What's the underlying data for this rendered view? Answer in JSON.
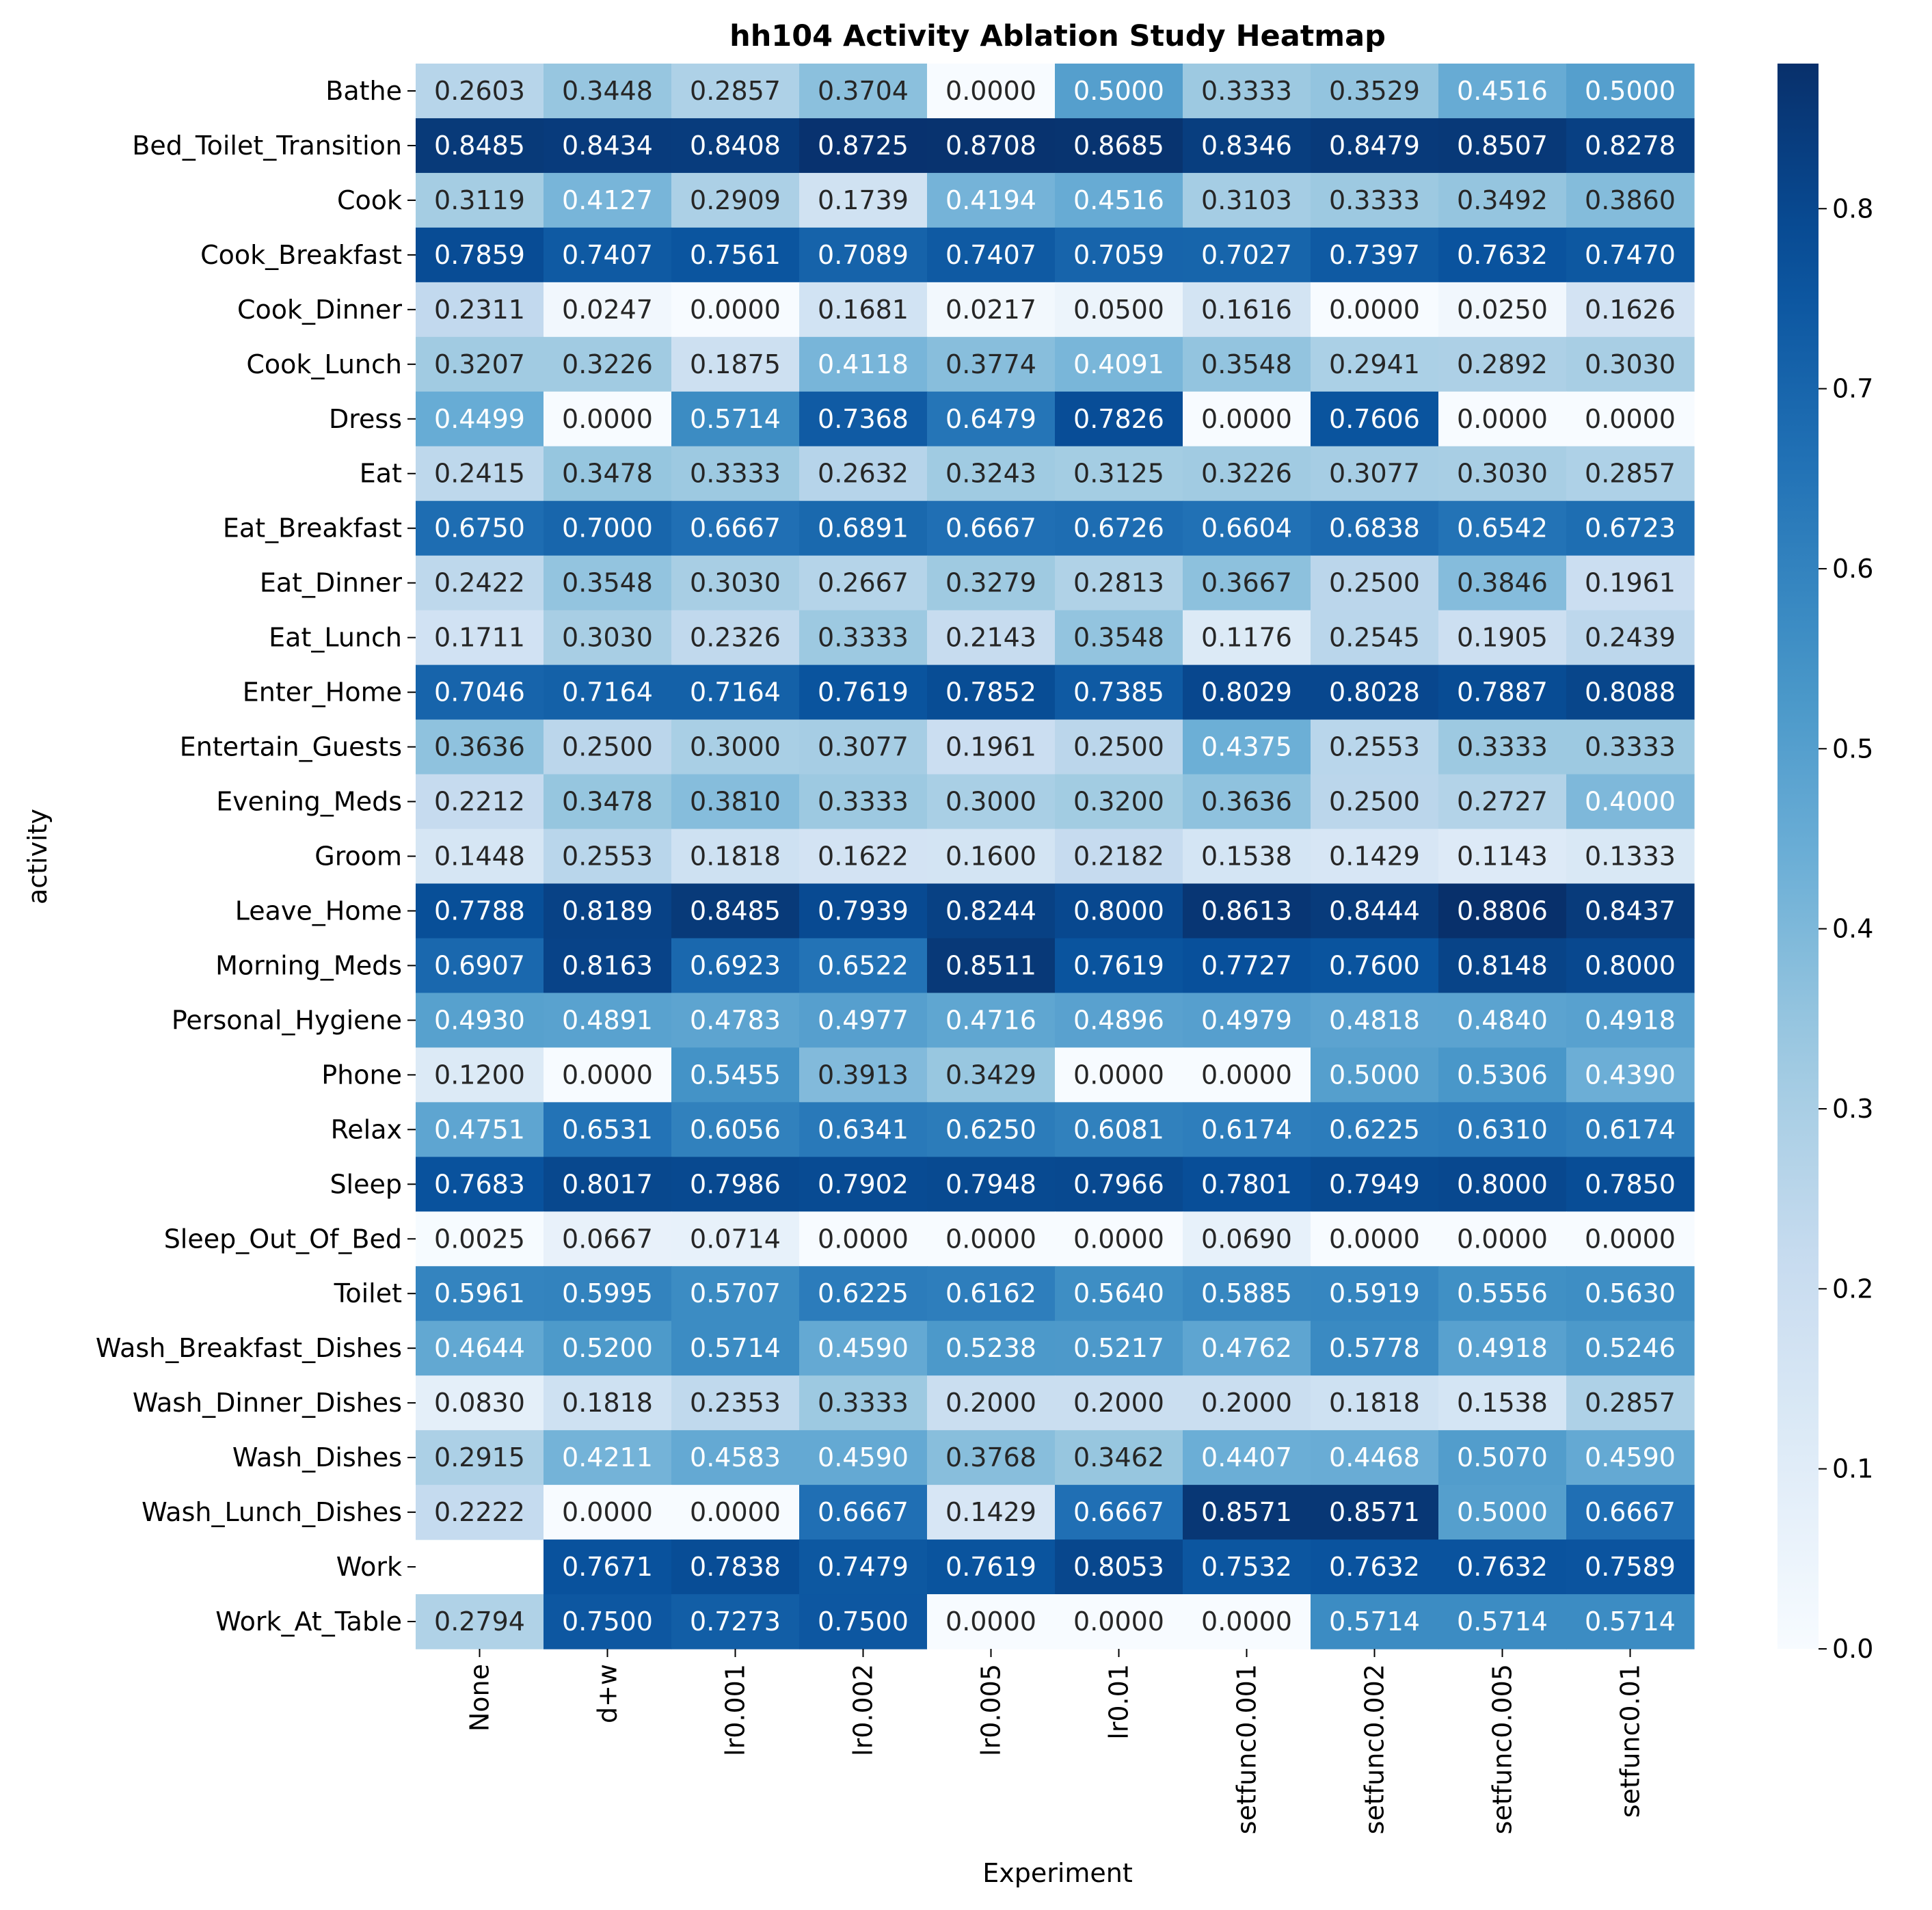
{
  "chart_data": {
    "type": "heatmap",
    "title": "hh104 Activity Ablation Study Heatmap",
    "xlabel": "Experiment",
    "ylabel": "activity",
    "colormap": "Blues",
    "vmin": 0.0,
    "vmax": 0.8806,
    "colorbar_ticks": [
      "0.0",
      "0.1",
      "0.2",
      "0.3",
      "0.4",
      "0.5",
      "0.6",
      "0.7",
      "0.8"
    ],
    "x_categories": [
      "None",
      "d+w",
      "lr0.001",
      "lr0.002",
      "lr0.005",
      "lr0.01",
      "setfunc0.001",
      "setfunc0.002",
      "setfunc0.005",
      "setfunc0.01"
    ],
    "y_categories": [
      "Bathe",
      "Bed_Toilet_Transition",
      "Cook",
      "Cook_Breakfast",
      "Cook_Dinner",
      "Cook_Lunch",
      "Dress",
      "Eat",
      "Eat_Breakfast",
      "Eat_Dinner",
      "Eat_Lunch",
      "Enter_Home",
      "Entertain_Guests",
      "Evening_Meds",
      "Groom",
      "Leave_Home",
      "Morning_Meds",
      "Personal_Hygiene",
      "Phone",
      "Relax",
      "Sleep",
      "Sleep_Out_Of_Bed",
      "Toilet",
      "Wash_Breakfast_Dishes",
      "Wash_Dinner_Dishes",
      "Wash_Dishes",
      "Wash_Lunch_Dishes",
      "Work",
      "Work_At_Table"
    ],
    "values": [
      [
        "0.2603",
        "0.3448",
        "0.2857",
        "0.3704",
        "0.0000",
        "0.5000",
        "0.3333",
        "0.3529",
        "0.4516",
        "0.5000"
      ],
      [
        "0.8485",
        "0.8434",
        "0.8408",
        "0.8725",
        "0.8708",
        "0.8685",
        "0.8346",
        "0.8479",
        "0.8507",
        "0.8278"
      ],
      [
        "0.3119",
        "0.4127",
        "0.2909",
        "0.1739",
        "0.4194",
        "0.4516",
        "0.3103",
        "0.3333",
        "0.3492",
        "0.3860"
      ],
      [
        "0.7859",
        "0.7407",
        "0.7561",
        "0.7089",
        "0.7407",
        "0.7059",
        "0.7027",
        "0.7397",
        "0.7632",
        "0.7470"
      ],
      [
        "0.2311",
        "0.0247",
        "0.0000",
        "0.1681",
        "0.0217",
        "0.0500",
        "0.1616",
        "0.0000",
        "0.0250",
        "0.1626"
      ],
      [
        "0.3207",
        "0.3226",
        "0.1875",
        "0.4118",
        "0.3774",
        "0.4091",
        "0.3548",
        "0.2941",
        "0.2892",
        "0.3030"
      ],
      [
        "0.4499",
        "0.0000",
        "0.5714",
        "0.7368",
        "0.6479",
        "0.7826",
        "0.0000",
        "0.7606",
        "0.0000",
        "0.0000"
      ],
      [
        "0.2415",
        "0.3478",
        "0.3333",
        "0.2632",
        "0.3243",
        "0.3125",
        "0.3226",
        "0.3077",
        "0.3030",
        "0.2857"
      ],
      [
        "0.6750",
        "0.7000",
        "0.6667",
        "0.6891",
        "0.6667",
        "0.6726",
        "0.6604",
        "0.6838",
        "0.6542",
        "0.6723"
      ],
      [
        "0.2422",
        "0.3548",
        "0.3030",
        "0.2667",
        "0.3279",
        "0.2813",
        "0.3667",
        "0.2500",
        "0.3846",
        "0.1961"
      ],
      [
        "0.1711",
        "0.3030",
        "0.2326",
        "0.3333",
        "0.2143",
        "0.3548",
        "0.1176",
        "0.2545",
        "0.1905",
        "0.2439"
      ],
      [
        "0.7046",
        "0.7164",
        "0.7164",
        "0.7619",
        "0.7852",
        "0.7385",
        "0.8029",
        "0.8028",
        "0.7887",
        "0.8088"
      ],
      [
        "0.3636",
        "0.2500",
        "0.3000",
        "0.3077",
        "0.1961",
        "0.2500",
        "0.4375",
        "0.2553",
        "0.3333",
        "0.3333"
      ],
      [
        "0.2212",
        "0.3478",
        "0.3810",
        "0.3333",
        "0.3000",
        "0.3200",
        "0.3636",
        "0.2500",
        "0.2727",
        "0.4000"
      ],
      [
        "0.1448",
        "0.2553",
        "0.1818",
        "0.1622",
        "0.1600",
        "0.2182",
        "0.1538",
        "0.1429",
        "0.1143",
        "0.1333"
      ],
      [
        "0.7788",
        "0.8189",
        "0.8485",
        "0.7939",
        "0.8244",
        "0.8000",
        "0.8613",
        "0.8444",
        "0.8806",
        "0.8437"
      ],
      [
        "0.6907",
        "0.8163",
        "0.6923",
        "0.6522",
        "0.8511",
        "0.7619",
        "0.7727",
        "0.7600",
        "0.8148",
        "0.8000"
      ],
      [
        "0.4930",
        "0.4891",
        "0.4783",
        "0.4977",
        "0.4716",
        "0.4896",
        "0.4979",
        "0.4818",
        "0.4840",
        "0.4918"
      ],
      [
        "0.1200",
        "0.0000",
        "0.5455",
        "0.3913",
        "0.3429",
        "0.0000",
        "0.0000",
        "0.5000",
        "0.5306",
        "0.4390"
      ],
      [
        "0.4751",
        "0.6531",
        "0.6056",
        "0.6341",
        "0.6250",
        "0.6081",
        "0.6174",
        "0.6225",
        "0.6310",
        "0.6174"
      ],
      [
        "0.7683",
        "0.8017",
        "0.7986",
        "0.7902",
        "0.7948",
        "0.7966",
        "0.7801",
        "0.7949",
        "0.8000",
        "0.7850"
      ],
      [
        "0.0025",
        "0.0667",
        "0.0714",
        "0.0000",
        "0.0000",
        "0.0000",
        "0.0690",
        "0.0000",
        "0.0000",
        "0.0000"
      ],
      [
        "0.5961",
        "0.5995",
        "0.5707",
        "0.6225",
        "0.6162",
        "0.5640",
        "0.5885",
        "0.5919",
        "0.5556",
        "0.5630"
      ],
      [
        "0.4644",
        "0.5200",
        "0.5714",
        "0.4590",
        "0.5238",
        "0.5217",
        "0.4762",
        "0.5778",
        "0.4918",
        "0.5246"
      ],
      [
        "0.0830",
        "0.1818",
        "0.2353",
        "0.3333",
        "0.2000",
        "0.2000",
        "0.2000",
        "0.1818",
        "0.1538",
        "0.2857"
      ],
      [
        "0.2915",
        "0.4211",
        "0.4583",
        "0.4590",
        "0.3768",
        "0.3462",
        "0.4407",
        "0.4468",
        "0.5070",
        "0.4590"
      ],
      [
        "0.2222",
        "0.0000",
        "0.0000",
        "0.6667",
        "0.1429",
        "0.6667",
        "0.8571",
        "0.8571",
        "0.5000",
        "0.6667"
      ],
      [
        null,
        "0.7671",
        "0.7838",
        "0.7479",
        "0.7619",
        "0.8053",
        "0.7532",
        "0.7632",
        "0.7632",
        "0.7589"
      ],
      [
        "0.2794",
        "0.7500",
        "0.7273",
        "0.7500",
        "0.0000",
        "0.0000",
        "0.0000",
        "0.5714",
        "0.5714",
        "0.5714"
      ]
    ]
  }
}
